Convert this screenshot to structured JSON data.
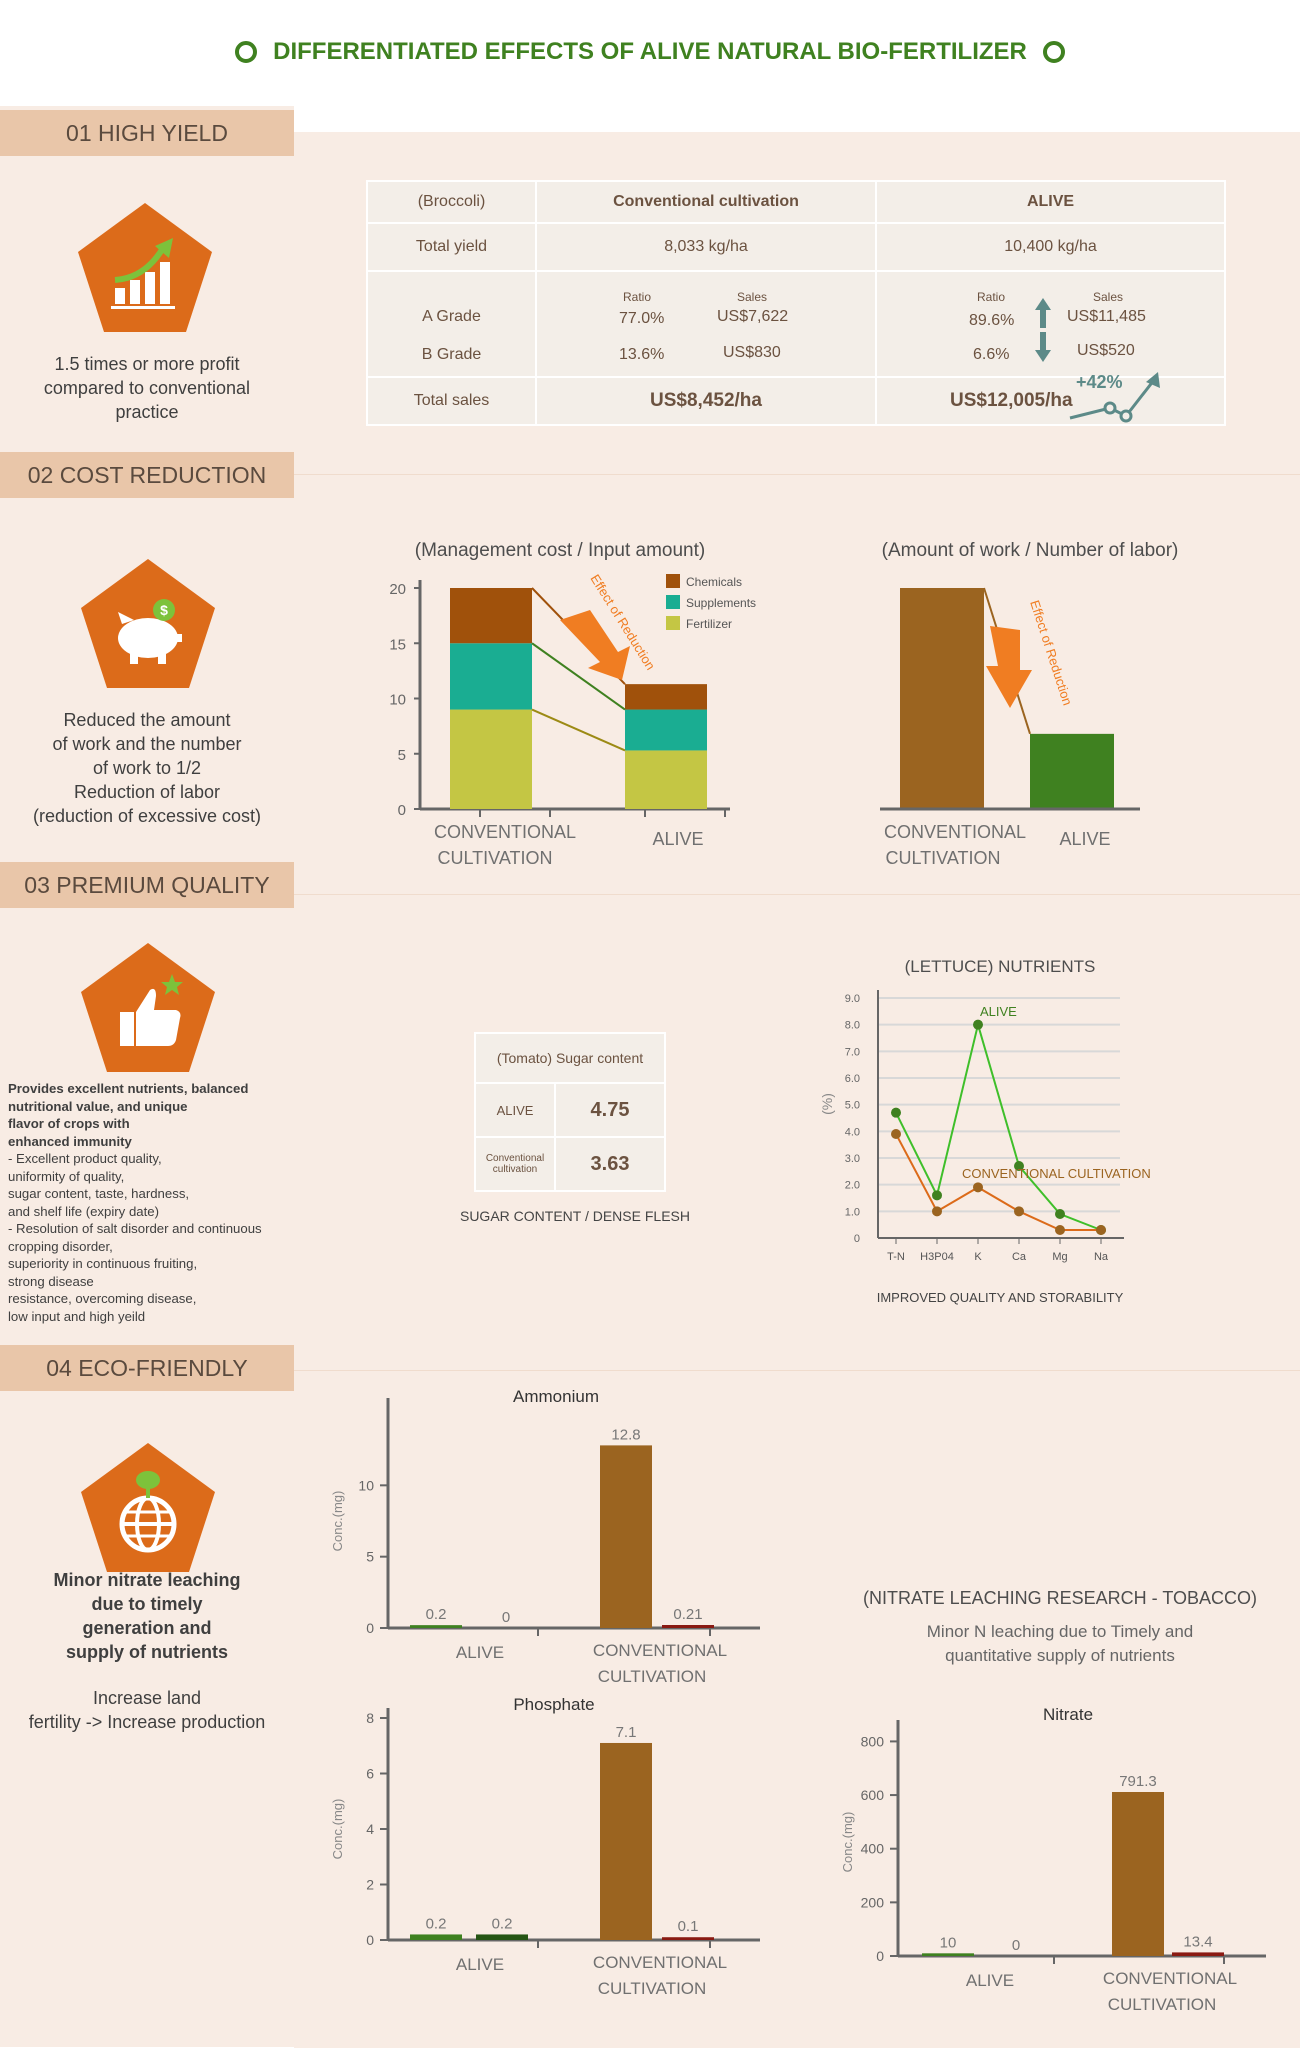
{
  "page": {
    "title": "DIFFERENTIATED EFFECTS OF ALIVE NATURAL BIO-FERTILIZER"
  },
  "colors": {
    "green": "#3f8120",
    "brown": "#9b6420",
    "orange": "#dc6b1a",
    "darkred": "#8a1a12",
    "teal": "#1aad92",
    "olive": "#c4c644",
    "chemicals": "#a0510b",
    "label_bg": "#e9c6a9",
    "panel_bg": "#f8ece4"
  },
  "sections": {
    "s1": {
      "label": "01 HIGH YIELD",
      "icon": "growth-chart-icon",
      "caption": [
        "1.5 times or more profit",
        "compared to conventional",
        "practice"
      ]
    },
    "s2": {
      "label": "02 COST REDUCTION",
      "icon": "piggy-bank-icon",
      "caption": [
        "Reduced the amount",
        "of work and the number",
        "of work to 1/2",
        "Reduction of labor",
        "(reduction of excessive cost)"
      ]
    },
    "s3": {
      "label": "03 PREMIUM QUALITY",
      "icon": "thumbs-up-icon",
      "caption_bold": [
        "Provides excellent nutrients, balanced",
        "nutritional value, and unique",
        "flavor of crops with",
        "enhanced immunity"
      ],
      "caption": [
        "- Excellent product quality,",
        "uniformity of quality,",
        "sugar content, taste, hardness,",
        "and shelf life (expiry date)",
        "- Resolution of salt disorder and continuous",
        "cropping disorder,",
        "superiority in continuous fruiting,",
        "strong disease",
        "resistance, overcoming disease,",
        "low input and high yeild"
      ]
    },
    "s4": {
      "label": "04 ECO-FRIENDLY",
      "icon": "globe-sprout-icon",
      "caption_bold": [
        "Minor nitrate leaching",
        "due to timely",
        "generation and",
        "supply of nutrients"
      ],
      "caption": [
        "Increase land",
        "fertility -> Increase production"
      ]
    }
  },
  "yield_table": {
    "headers": [
      "(Broccoli)",
      "Conventional cultivation",
      "ALIVE"
    ],
    "total_yield": {
      "label": "Total yield",
      "conv": "8,033 kg/ha",
      "alive": "10,400 kg/ha"
    },
    "sub_headers": {
      "ratio": "Ratio",
      "sales": "Sales"
    },
    "a_grade": {
      "label": "A Grade",
      "conv_ratio": "77.0%",
      "conv_sales": "US$7,622",
      "alive_ratio": "89.6%",
      "alive_sales": "US$11,485"
    },
    "b_grade": {
      "label": "B Grade",
      "conv_ratio": "13.6%",
      "conv_sales": "US$830",
      "alive_ratio": "6.6%",
      "alive_sales": "US$520"
    },
    "total_sales": {
      "label": "Total sales",
      "conv": "US$8,452/ha",
      "alive": "US$12,005/ha",
      "growth": "+42%"
    }
  },
  "chart_data": [
    {
      "id": "mgmt",
      "type": "bar",
      "title": "(Management cost / Input amount)",
      "categories": [
        "CONVENTIONAL CULTIVATION",
        "ALIVE"
      ],
      "series": [
        {
          "name": "Fertilizer",
          "values": [
            9,
            5.3
          ]
        },
        {
          "name": "Supplements",
          "values": [
            6,
            3.7
          ]
        },
        {
          "name": "Chemicals",
          "values": [
            5,
            2.3
          ]
        }
      ],
      "yticks": [
        0,
        5,
        10,
        15,
        20
      ],
      "ylim": [
        0,
        20
      ],
      "annotation": "Effect of Reduction",
      "stacked": true
    },
    {
      "id": "work",
      "type": "bar",
      "title": "(Amount of work / Number of labor)",
      "categories": [
        "CONVENTIONAL CULTIVATION",
        "ALIVE"
      ],
      "values": [
        20,
        6.8
      ],
      "ylim": [
        0,
        20
      ],
      "annotation": "Effect of Reduction"
    },
    {
      "id": "nutrients",
      "type": "line",
      "title": "(LETTUCE) NUTRIENTS",
      "ylabel": "(%)",
      "categories": [
        "T-N",
        "H3P04",
        "K",
        "Ca",
        "Mg",
        "Na"
      ],
      "series": [
        {
          "name": "ALIVE",
          "values": [
            4.7,
            1.6,
            8.0,
            2.7,
            0.9,
            0.3
          ]
        },
        {
          "name": "CONVENTIONAL CULTIVATION",
          "values": [
            3.9,
            1.0,
            1.9,
            1.0,
            0.3,
            0.3
          ]
        }
      ],
      "yticks": [
        "0",
        "1.0",
        "2.0",
        "3.0",
        "4.0",
        "5.0",
        "6.0",
        "7.0",
        "8.0",
        "9.0"
      ],
      "ylim": [
        0,
        9
      ],
      "footer": "IMPROVED QUALITY AND STORABILITY"
    },
    {
      "id": "ammonium",
      "type": "bar",
      "title": "Ammonium",
      "ylabel": "Conc.(mg)",
      "groups": [
        "ALIVE",
        "CONVENTIONAL CULTIVATION"
      ],
      "values": [
        0.2,
        0,
        12.8,
        0.21
      ],
      "labels": [
        "0.2",
        "0",
        "12.8",
        "0.21"
      ],
      "yticks": [
        0,
        5,
        10
      ],
      "ylim": [
        0,
        15
      ]
    },
    {
      "id": "phosphate",
      "type": "bar",
      "title": "Phosphate",
      "ylabel": "Conc.(mg)",
      "groups": [
        "ALIVE",
        "CONVENTIONAL CULTIVATION"
      ],
      "values": [
        0.2,
        0.2,
        7.1,
        0.1
      ],
      "labels": [
        "0.2",
        "0.2",
        "7.1",
        "0.1"
      ],
      "yticks": [
        0,
        2,
        4,
        6,
        8
      ],
      "ylim": [
        0,
        8
      ]
    },
    {
      "id": "nitrate",
      "type": "bar",
      "title": "Nitrate",
      "ylabel": "Conc.(mg)",
      "groups": [
        "ALIVE",
        "CONVENTIONAL CULTIVATION"
      ],
      "values": [
        10,
        0,
        791.3,
        13.4
      ],
      "labels": [
        "10",
        "0",
        "791.3",
        "13.4"
      ],
      "yticks": [
        0,
        200,
        400,
        600,
        800
      ],
      "ylim": [
        0,
        850
      ]
    }
  ],
  "sugar_table": {
    "title": "(Tomato) Sugar content",
    "rows": [
      {
        "label": "ALIVE",
        "value": "4.75"
      },
      {
        "label": "Conventional cultivation",
        "value": "3.63"
      }
    ],
    "footer": "SUGAR CONTENT / DENSE FLESH"
  },
  "nitrate_research": {
    "title": "(NITRATE LEACHING RESEARCH - TOBACCO)",
    "subtitle": [
      "Minor N leaching due to Timely and",
      "quantitative supply of nutrients"
    ]
  }
}
